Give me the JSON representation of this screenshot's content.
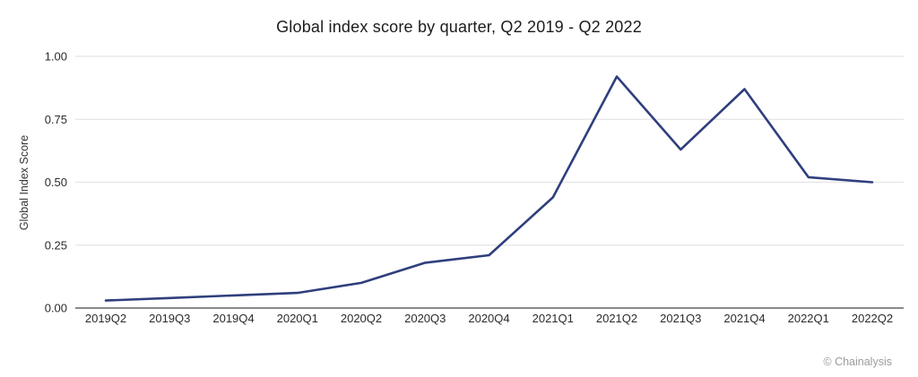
{
  "header": {
    "title": "Global index score by quarter, Q2 2019 - Q2 2022"
  },
  "chart_data": {
    "type": "line",
    "title": "Global index score by quarter, Q2 2019 - Q2 2022",
    "xlabel": "",
    "ylabel": "Global Index Score",
    "categories": [
      "2019Q2",
      "2019Q3",
      "2019Q4",
      "2020Q1",
      "2020Q2",
      "2020Q3",
      "2020Q4",
      "2021Q1",
      "2021Q2",
      "2021Q3",
      "2021Q4",
      "2022Q1",
      "2022Q2"
    ],
    "series": [
      {
        "name": "Global index score",
        "values": [
          0.03,
          0.04,
          0.05,
          0.06,
          0.1,
          0.18,
          0.21,
          0.44,
          0.92,
          0.63,
          0.87,
          0.52,
          0.5
        ]
      }
    ],
    "ylim": [
      0,
      1.0
    ],
    "yticks": [
      0,
      0.25,
      0.5,
      0.75,
      1.0
    ],
    "ytick_labels": [
      "0.00",
      "0.25",
      "0.50",
      "0.75",
      "1.00"
    ],
    "grid": true,
    "legend": "none"
  },
  "colors": {
    "line": "#2f3f7d",
    "grid": "#e4e4e4",
    "axis": "#8a8a8a",
    "text": "#2b2b2b",
    "muted": "#9c9c9c",
    "background": "#ffffff"
  },
  "footer": {
    "credit": "© Chainalysis"
  }
}
